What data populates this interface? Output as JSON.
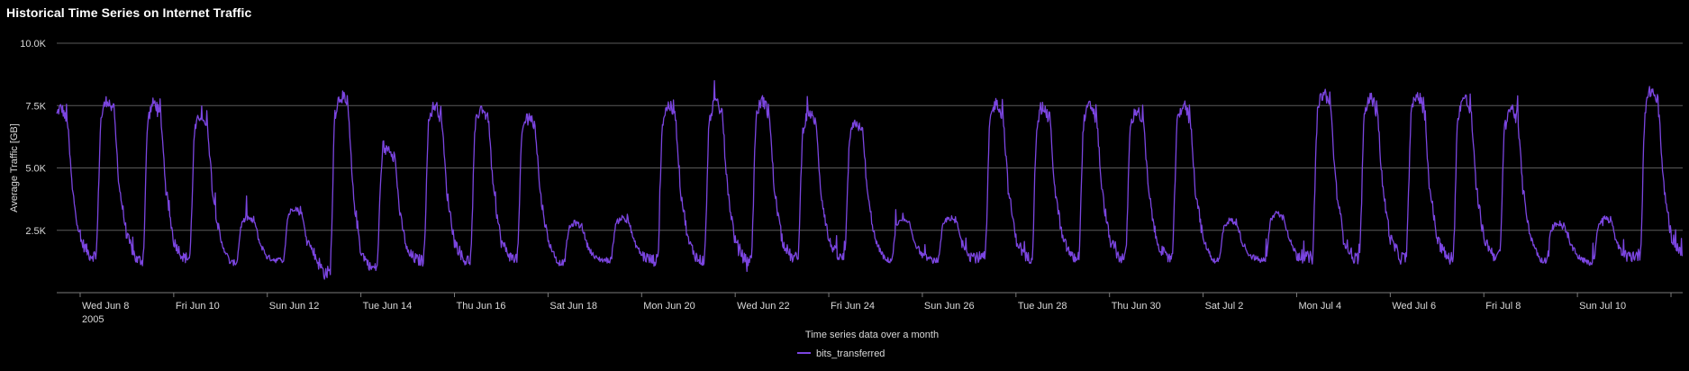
{
  "chart_data": {
    "type": "line",
    "title": "Historical Time Series on Internet Traffic",
    "xlabel": "Time series data over a month",
    "ylabel": "Average Traffic [GB]",
    "ylim": [
      0,
      10000
    ],
    "y_ticks": [
      {
        "value": 2500,
        "label": "2.5K"
      },
      {
        "value": 5000,
        "label": "5.0K"
      },
      {
        "value": 7500,
        "label": "7.5K"
      },
      {
        "value": 10000,
        "label": "10.0K"
      }
    ],
    "x_ticks": [
      {
        "label": "Wed Jun 8",
        "sub": "2005"
      },
      {
        "label": "Fri Jun 10"
      },
      {
        "label": "Sun Jun 12"
      },
      {
        "label": "Tue Jun 14"
      },
      {
        "label": "Thu Jun 16"
      },
      {
        "label": "Sat Jun 18"
      },
      {
        "label": "Mon Jun 20"
      },
      {
        "label": "Wed Jun 22"
      },
      {
        "label": "Fri Jun 24"
      },
      {
        "label": "Sun Jun 26"
      },
      {
        "label": "Tue Jun 28"
      },
      {
        "label": "Thu Jun 30"
      },
      {
        "label": "Sat Jul 2"
      },
      {
        "label": "Mon Jul 4"
      },
      {
        "label": "Wed Jul 6"
      },
      {
        "label": "Fri Jul 8"
      },
      {
        "label": "Sun Jul 10"
      }
    ],
    "x_start": "2005-06-07T12:00",
    "x_end": "2005-07-12T06:00",
    "grid": true,
    "legend": "bottom-center",
    "series": [
      {
        "name": "bits_transferred",
        "color": "#7b45e0",
        "daily_pattern": [
          {
            "date": "2005-06-07",
            "peak": 7400,
            "low": 1400
          },
          {
            "date": "2005-06-08",
            "peak": 7700,
            "low": 1500
          },
          {
            "date": "2005-06-09",
            "peak": 7600,
            "low": 1300
          },
          {
            "date": "2005-06-10",
            "peak": 7100,
            "low": 1400
          },
          {
            "date": "2005-06-11",
            "peak": 3000,
            "low": 1200
          },
          {
            "date": "2005-06-12",
            "peak": 3400,
            "low": 1300
          },
          {
            "date": "2005-06-13",
            "peak": 7900,
            "low": 800
          },
          {
            "date": "2005-06-14",
            "peak": 5800,
            "low": 1000
          },
          {
            "date": "2005-06-15",
            "peak": 7500,
            "low": 1300
          },
          {
            "date": "2005-06-16",
            "peak": 7400,
            "low": 1300
          },
          {
            "date": "2005-06-17",
            "peak": 7100,
            "low": 1400
          },
          {
            "date": "2005-06-18",
            "peak": 2800,
            "low": 1200
          },
          {
            "date": "2005-06-19",
            "peak": 3000,
            "low": 1300
          },
          {
            "date": "2005-06-20",
            "peak": 7500,
            "low": 1300
          },
          {
            "date": "2005-06-21",
            "peak": 7600,
            "low": 1300
          },
          {
            "date": "2005-06-22",
            "peak": 7700,
            "low": 1300
          },
          {
            "date": "2005-06-23",
            "peak": 7200,
            "low": 1400
          },
          {
            "date": "2005-06-24",
            "peak": 6800,
            "low": 1400
          },
          {
            "date": "2005-06-25",
            "peak": 2900,
            "low": 1300
          },
          {
            "date": "2005-06-26",
            "peak": 3000,
            "low": 1300
          },
          {
            "date": "2005-06-27",
            "peak": 7600,
            "low": 1400
          },
          {
            "date": "2005-06-28",
            "peak": 7400,
            "low": 1400
          },
          {
            "date": "2005-06-29",
            "peak": 7500,
            "low": 1400
          },
          {
            "date": "2005-06-30",
            "peak": 7300,
            "low": 1400
          },
          {
            "date": "2005-07-01",
            "peak": 7500,
            "low": 1400
          },
          {
            "date": "2005-07-02",
            "peak": 2900,
            "low": 1300
          },
          {
            "date": "2005-07-03",
            "peak": 3200,
            "low": 1300
          },
          {
            "date": "2005-07-04",
            "peak": 8000,
            "low": 1400
          },
          {
            "date": "2005-07-05",
            "peak": 7800,
            "low": 1400
          },
          {
            "date": "2005-07-06",
            "peak": 7900,
            "low": 1400
          },
          {
            "date": "2005-07-07",
            "peak": 7800,
            "low": 1400
          },
          {
            "date": "2005-07-08",
            "peak": 7400,
            "low": 1500
          },
          {
            "date": "2005-07-09",
            "peak": 2800,
            "low": 1300
          },
          {
            "date": "2005-07-10",
            "peak": 3000,
            "low": 1200
          },
          {
            "date": "2005-07-11",
            "peak": 8100,
            "low": 1500
          },
          {
            "date": "2005-07-12",
            "peak": 8000,
            "low": 1600
          }
        ]
      }
    ]
  }
}
